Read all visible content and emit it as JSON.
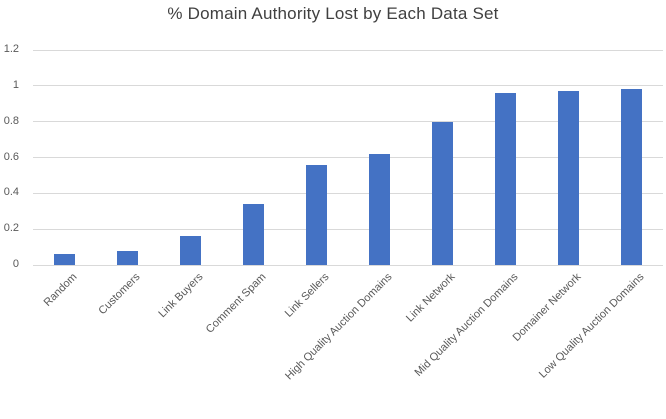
{
  "chart_data": {
    "type": "bar",
    "title": "% Domain Authority Lost by Each Data Set",
    "categories": [
      "Random",
      "Customers",
      "Link Buyers",
      "Comment Spam",
      "Link Sellers",
      "High Quality Auction Domains",
      "Link Network",
      "Mid Quality Auction Domains",
      "Domainer Network",
      "Low Quality Auction Domains"
    ],
    "values": [
      0.06,
      0.08,
      0.16,
      0.34,
      0.56,
      0.62,
      0.8,
      0.96,
      0.97,
      0.98
    ],
    "xlabel": "",
    "ylabel": "",
    "ylim": [
      0,
      1.2
    ],
    "ytick_step": 0.2,
    "yticks": [
      "0",
      "0.2",
      "0.4",
      "0.6",
      "0.8",
      "1",
      "1.2"
    ],
    "grid": "horizontal-on",
    "legend": "none",
    "colors": {
      "bar": "#4472c4",
      "gridline": "#d9d9d9",
      "axis_text": "#595959",
      "title_text": "#404040",
      "background": "#ffffff"
    }
  }
}
